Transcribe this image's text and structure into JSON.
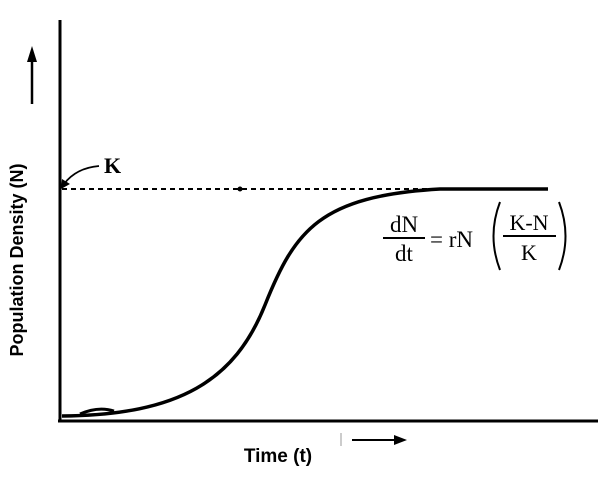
{
  "diagram": {
    "y_axis_label": "Population Density (N)",
    "x_axis_label": "Time (t)",
    "capacity_label": "K",
    "equation": {
      "lhs_numerator": "dN",
      "lhs_denominator": "dt",
      "equals_rN": "= rN",
      "rhs_numerator": "K-N",
      "rhs_denominator": "K"
    },
    "colors": {
      "ink": "#000000",
      "background": "#ffffff"
    }
  }
}
